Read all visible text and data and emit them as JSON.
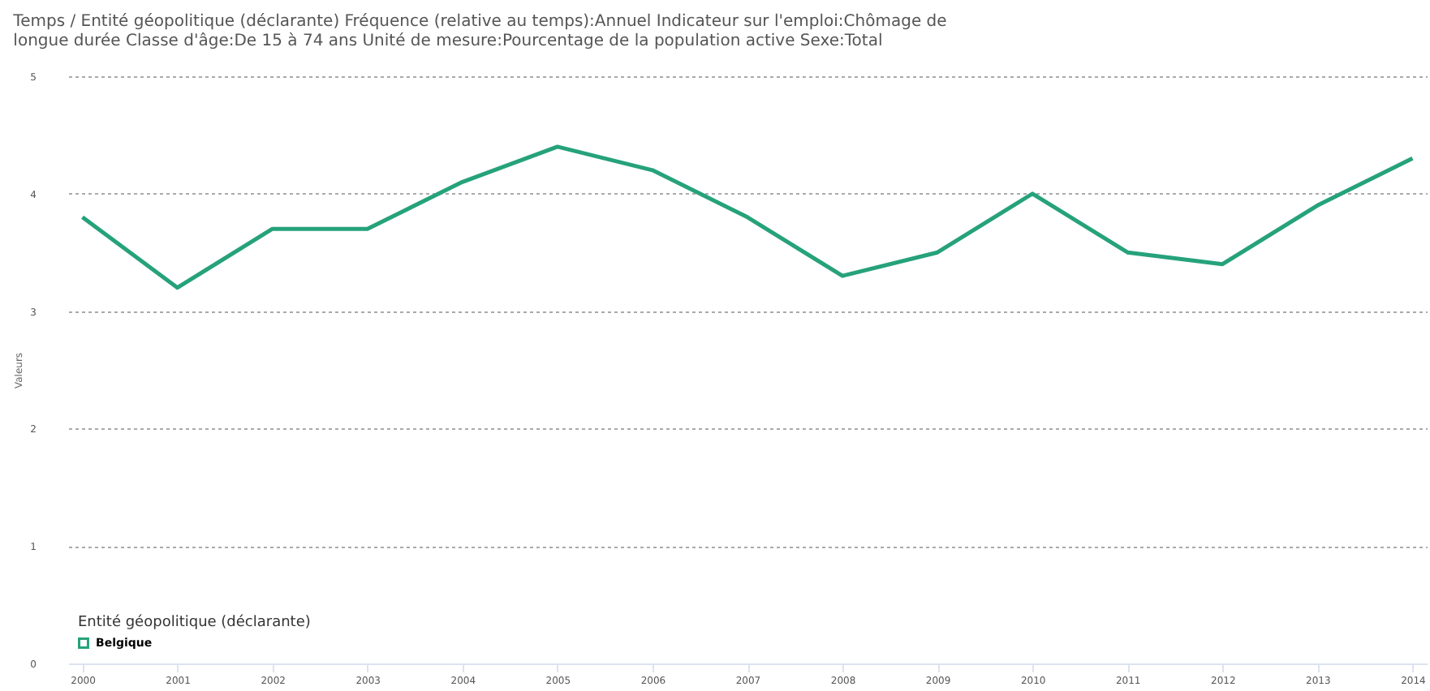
{
  "chart_data": {
    "type": "line",
    "title": "Temps / Entité géopolitique (déclarante)  Fréquence (relative au temps):Annuel  Indicateur sur l'emploi:Chômage de longue durée  Classe d'âge:De 15 à 74 ans  Unité de mesure:Pourcentage de la population active  Sexe:Total",
    "ylabel": "Valeurs",
    "legend_title": "Entité géopolitique (déclarante)",
    "categories": [
      "2000",
      "2001",
      "2002",
      "2003",
      "2004",
      "2005",
      "2006",
      "2007",
      "2008",
      "2009",
      "2010",
      "2011",
      "2012",
      "2013",
      "2014"
    ],
    "series": [
      {
        "name": "Belgique",
        "color": "#26a27b",
        "values": [
          3.8,
          3.2,
          3.7,
          3.7,
          4.1,
          4.4,
          4.2,
          3.8,
          3.3,
          3.5,
          4.0,
          3.5,
          3.4,
          3.9,
          4.3
        ]
      }
    ],
    "ylim": [
      0,
      5
    ],
    "yticks": [
      0,
      1,
      2,
      3,
      4,
      5
    ],
    "grid": "y",
    "legend": "bottom left",
    "marker": "none",
    "line_style": "solid"
  }
}
